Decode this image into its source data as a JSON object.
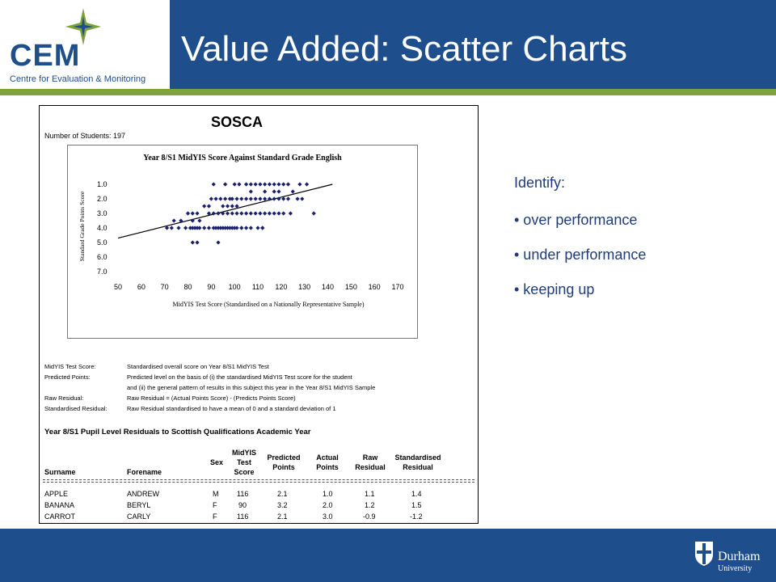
{
  "header": {
    "logo_letters": "CEM",
    "logo_subtitle": "Centre for Evaluation & Monitoring",
    "title": "Value Added: Scatter Charts"
  },
  "report": {
    "heading": "SOSCA",
    "num_students": "Number of Students: 197",
    "definitions": [
      {
        "term": "MidYIS Test Score:",
        "text": "Standardised overall score on Year 8/S1 MidYIS Test"
      },
      {
        "term": "Predicted Points:",
        "text": "Predicted level on the basis of (i) the standardised MidYIS Test score for the student"
      },
      {
        "term": "",
        "text": "and (ii) the general pattern of results in this subject this year in the Year 8/S1 MidYIS Sample"
      },
      {
        "term": "Raw Residual:",
        "text": "Raw Residual = (Actual Points Score) - (Predicts Points Score)"
      },
      {
        "term": "Standardised Residual:",
        "text": "Raw Residual standardised to have a mean of 0 and a standard deviation of 1"
      }
    ],
    "table_title": "Year 8/S1 Pupil Level Residuals to Scottish Qualifications Academic Year",
    "table_headers": {
      "surname": "Surname",
      "forename": "Forename",
      "sex": "Sex",
      "midyis_1": "MidYIS",
      "midyis_2": "Test",
      "midyis_3": "Score",
      "pred_1": "Predicted",
      "pred_2": "Points",
      "actual_1": "Actual",
      "actual_2": "Points",
      "raw_1": "Raw",
      "raw_2": "Residual",
      "std_1": "Standardised",
      "std_2": "Residual"
    },
    "rows": [
      {
        "surname": "APPLE",
        "forename": "ANDREW",
        "sex": "M",
        "score": "116",
        "predicted": "2.1",
        "actual": "1.0",
        "raw": "1.1",
        "std": "1.4"
      },
      {
        "surname": "BANANA",
        "forename": "BERYL",
        "sex": "F",
        "score": "90",
        "predicted": "3.2",
        "actual": "2.0",
        "raw": "1.2",
        "std": "1.5"
      },
      {
        "surname": "CARROT",
        "forename": "CARLY",
        "sex": "F",
        "score": "116",
        "predicted": "2.1",
        "actual": "3.0",
        "raw": "-0.9",
        "std": "-1.2"
      }
    ]
  },
  "identify": {
    "heading": "Identify:",
    "items": [
      "• over performance",
      "• under performance",
      "• keeping up"
    ]
  },
  "footer": {
    "university_name": "Durham",
    "university_sub": "University"
  },
  "colors": {
    "brand_blue": "#1f4e8c",
    "accent_green": "#7fa23a",
    "marker_navy": "#1a1f6e"
  },
  "chart_data": {
    "type": "scatter",
    "title": "Year 8/S1 MidYIS Score Against Standard Grade English",
    "xlabel": "MidYIS Test Score (Standardised on a Nationally Representative Sample)",
    "ylabel": "Standard Grade Points Score",
    "xlim": [
      50,
      170
    ],
    "ylim": [
      1.0,
      7.0
    ],
    "y_inverted": true,
    "x_ticks": [
      "50",
      "60",
      "70",
      "80",
      "90",
      "100",
      "110",
      "120",
      "130",
      "140",
      "150",
      "160",
      "170"
    ],
    "y_ticks": [
      "1.0",
      "2.0",
      "3.0",
      "4.0",
      "5.0",
      "6.0",
      "7.0"
    ],
    "trendline": {
      "x": [
        50,
        142
      ],
      "y": [
        4.7,
        1.0
      ]
    },
    "series": [
      {
        "x": [
          91,
          96,
          100,
          102,
          105,
          107,
          109,
          111,
          113,
          115,
          117,
          119,
          121,
          123,
          128,
          131,
          90,
          92,
          94,
          96,
          98,
          99,
          101,
          103,
          105,
          107,
          109,
          111,
          113,
          115,
          117,
          119,
          121,
          123,
          127,
          129,
          80,
          82,
          84,
          89,
          91,
          93,
          95,
          97,
          99,
          101,
          103,
          105,
          107,
          109,
          111,
          113,
          115,
          117,
          119,
          121,
          124,
          134,
          71,
          73,
          76,
          79,
          81,
          83,
          85,
          87,
          89,
          91,
          93,
          95,
          97,
          99,
          101,
          103,
          105,
          107,
          110,
          112,
          82,
          84,
          92,
          94,
          96,
          98,
          100,
          103,
          112,
          82,
          84,
          93,
          74,
          77,
          82,
          85,
          87,
          89,
          95,
          97,
          99,
          101,
          107,
          113,
          117,
          119,
          125
        ],
        "y": [
          1.0,
          1.0,
          1.0,
          1.0,
          1.0,
          1.0,
          1.0,
          1.0,
          1.0,
          1.0,
          1.0,
          1.0,
          1.0,
          1.0,
          1.0,
          1.0,
          2.0,
          2.0,
          2.0,
          2.0,
          2.0,
          2.0,
          2.0,
          2.0,
          2.0,
          2.0,
          2.0,
          2.0,
          2.0,
          2.0,
          2.0,
          2.0,
          2.0,
          2.0,
          2.0,
          2.0,
          3.0,
          3.0,
          3.0,
          3.0,
          3.0,
          3.0,
          3.0,
          3.0,
          3.0,
          3.0,
          3.0,
          3.0,
          3.0,
          3.0,
          3.0,
          3.0,
          3.0,
          3.0,
          3.0,
          3.0,
          3.0,
          3.0,
          4.0,
          4.0,
          4.0,
          4.0,
          4.0,
          4.0,
          4.0,
          4.0,
          4.0,
          4.0,
          4.0,
          4.0,
          4.0,
          4.0,
          4.0,
          4.0,
          4.0,
          4.0,
          4.0,
          4.0,
          4.0,
          4.0,
          4.0,
          4.0,
          4.0,
          4.0,
          4.0,
          4.0,
          4.0,
          5.0,
          5.0,
          5.0,
          3.5,
          3.5,
          3.5,
          3.5,
          2.5,
          2.5,
          2.5,
          2.5,
          2.5,
          2.5,
          1.5,
          1.5,
          1.5,
          1.5,
          1.5
        ]
      }
    ]
  }
}
